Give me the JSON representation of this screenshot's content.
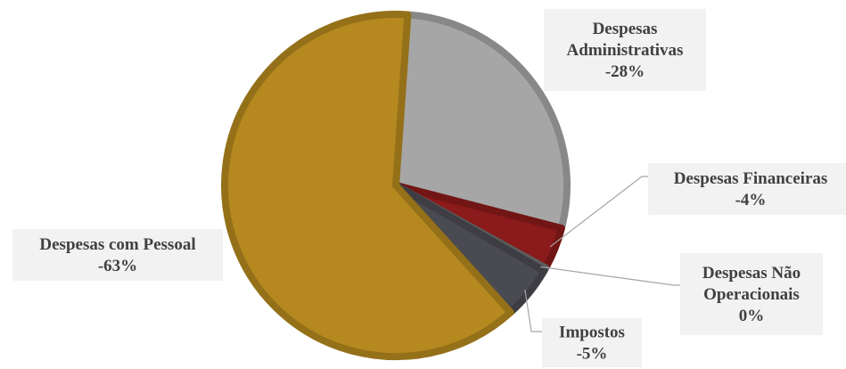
{
  "chart_data": {
    "type": "pie",
    "title": "",
    "series": [
      {
        "name": "",
        "slices": [
          {
            "label": "Despesas Administrativas",
            "value_label": "-28%",
            "value": 28,
            "color": "#a6a6a6"
          },
          {
            "label": "Despesas Financeiras",
            "value_label": "-4%",
            "value": 4,
            "color": "#8b1a1a"
          },
          {
            "label": "Despesas Não Operacionais",
            "value_label": "0%",
            "value": 0.3,
            "color": "#707070"
          },
          {
            "label": "Impostos",
            "value_label": "-5%",
            "value": 5,
            "color": "#4a4a52"
          },
          {
            "label": "Despesas com Pessoal",
            "value_label": "-63%",
            "value": 63,
            "color": "#b5891f"
          }
        ]
      }
    ],
    "legend": "none",
    "data_labels": true
  }
}
